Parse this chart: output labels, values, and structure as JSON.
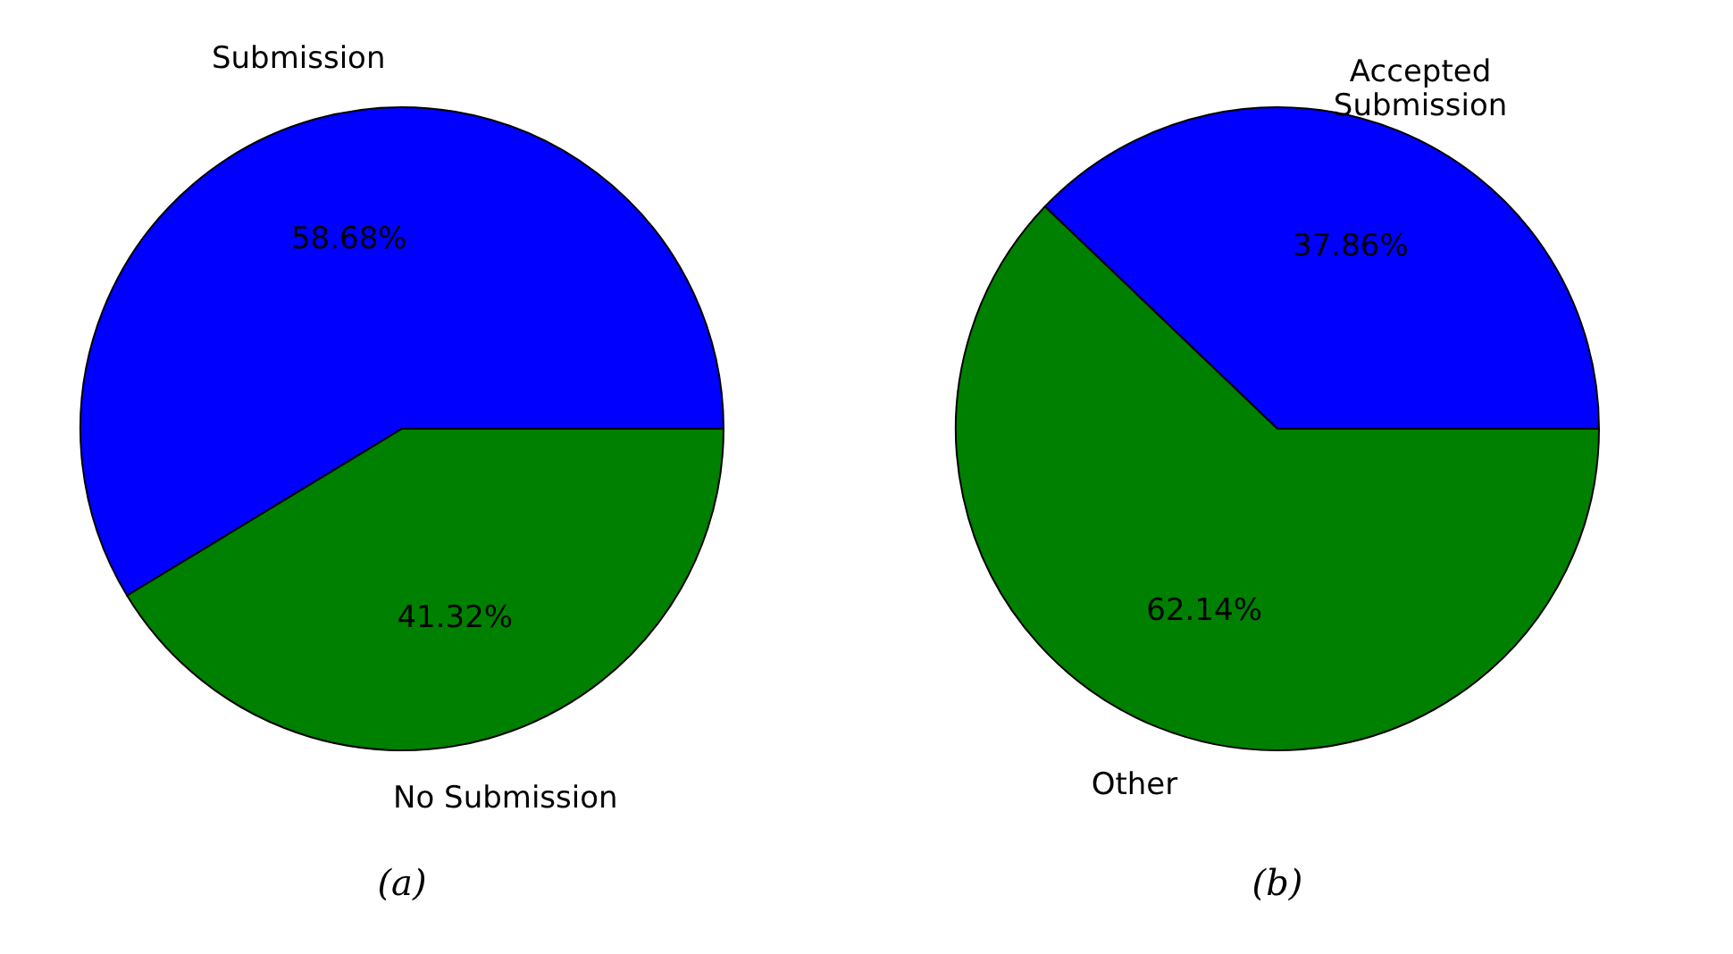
{
  "chart_data": [
    {
      "type": "pie",
      "title": "(a)",
      "categories": [
        "Submission",
        "No Submission"
      ],
      "values": [
        58.68,
        41.32
      ],
      "colors": [
        "#0000ff",
        "#008000"
      ],
      "value_labels": [
        "58.68%",
        "41.32%"
      ],
      "legend": false
    },
    {
      "type": "pie",
      "title": "(b)",
      "categories": [
        "Accepted Submission",
        "Other"
      ],
      "values": [
        37.86,
        62.14
      ],
      "colors": [
        "#0000ff",
        "#008000"
      ],
      "value_labels": [
        "37.86%",
        "62.14%"
      ],
      "legend": false
    }
  ]
}
